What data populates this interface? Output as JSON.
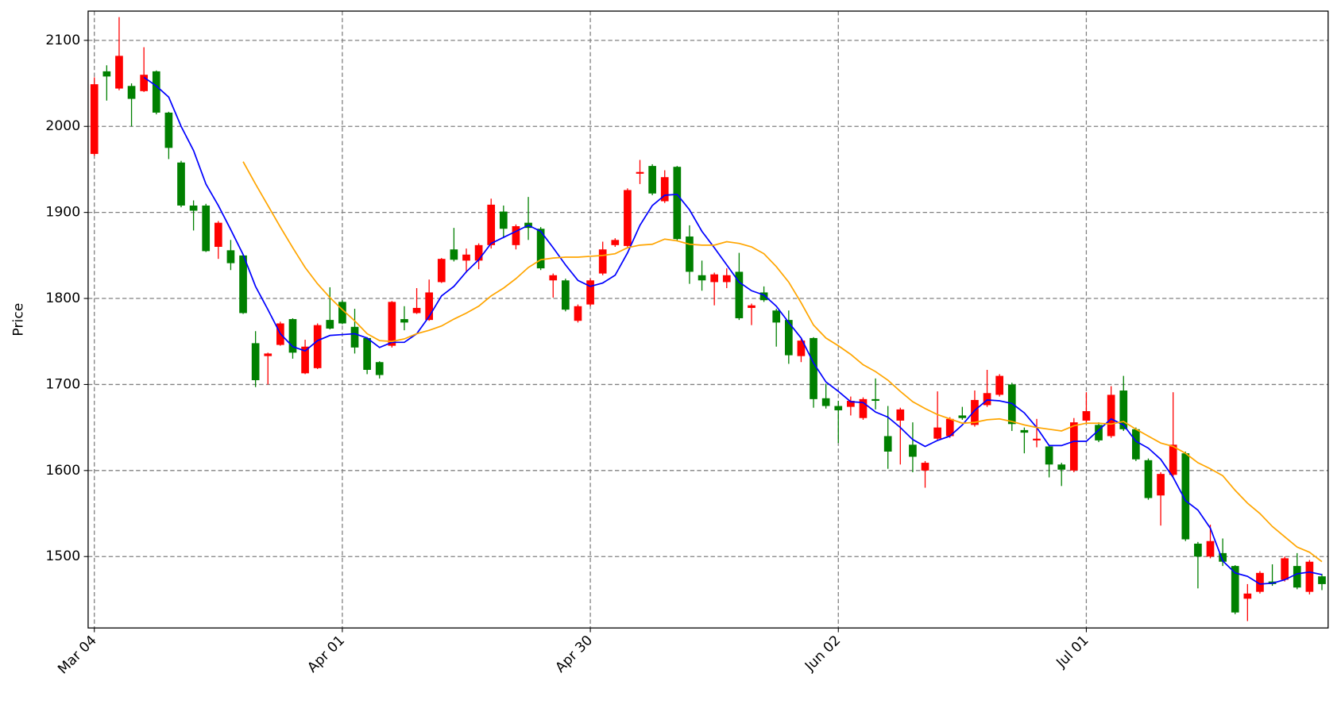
{
  "chart_data": {
    "type": "candlestick",
    "y_label": "Price",
    "categories": [
      "Mar 04",
      null,
      null,
      null,
      null,
      null,
      null,
      null,
      null,
      null,
      null,
      null,
      null,
      null,
      null,
      null,
      null,
      null,
      null,
      null,
      "Apr 01",
      null,
      null,
      null,
      null,
      null,
      null,
      null,
      null,
      null,
      null,
      null,
      null,
      null,
      null,
      null,
      null,
      null,
      null,
      null,
      "Apr 30",
      null,
      null,
      null,
      null,
      null,
      null,
      null,
      null,
      null,
      null,
      null,
      null,
      null,
      null,
      null,
      null,
      null,
      null,
      null,
      "Jun 02",
      null,
      null,
      null,
      null,
      null,
      null,
      null,
      null,
      null,
      null,
      null,
      null,
      null,
      null,
      null,
      null,
      null,
      null,
      null,
      "Jul 01",
      null,
      null,
      null,
      null,
      null,
      null,
      null,
      null,
      null,
      null,
      null,
      null,
      null,
      null,
      null,
      null,
      null,
      null,
      null
    ],
    "open": [
      1968,
      2064,
      2044,
      2047,
      2041,
      2064,
      2016,
      1958,
      1908,
      1908,
      1860,
      1856,
      1850,
      1748,
      1733,
      1746,
      1776,
      1713,
      1719,
      1775,
      1796,
      1767,
      1754,
      1726,
      1745,
      1776,
      1783,
      1775,
      1819,
      1857,
      1844,
      1844,
      1862,
      1901,
      1862,
      1888,
      1881,
      1821,
      1821,
      1774,
      1793,
      1829,
      1862,
      1861,
      1945,
      1954,
      1913,
      1953,
      1872,
      1827,
      1819,
      1819,
      1831,
      1789,
      1807,
      1786,
      1775,
      1733,
      1754,
      1684,
      1675,
      1674,
      1661,
      1683,
      1640,
      1658,
      1630,
      1600,
      1637,
      1640,
      1664,
      1653,
      1676,
      1688,
      1700,
      1647,
      1635,
      1628,
      1607,
      1600,
      1658,
      1653,
      1640,
      1693,
      1648,
      1612,
      1571,
      1595,
      1620,
      1515,
      1500,
      1504,
      1489,
      1451,
      1459,
      1471,
      1473,
      1489,
      1459,
      1477
    ],
    "high": [
      2057,
      2071,
      2127,
      2050,
      2092,
      2065,
      2017,
      1960,
      1914,
      1910,
      1890,
      1868,
      1851,
      1762,
      1737,
      1773,
      1777,
      1752,
      1771,
      1813,
      1798,
      1788,
      1755,
      1727,
      1797,
      1791,
      1812,
      1822,
      1847,
      1882,
      1858,
      1864,
      1916,
      1908,
      1886,
      1918,
      1883,
      1829,
      1823,
      1793,
      1823,
      1866,
      1870,
      1928,
      1961,
      1956,
      1949,
      1954,
      1885,
      1844,
      1830,
      1835,
      1853,
      1794,
      1814,
      1788,
      1786,
      1753,
      1755,
      1701,
      1681,
      1686,
      1685,
      1707,
      1675,
      1673,
      1656,
      1611,
      1692,
      1662,
      1674,
      1693,
      1717,
      1712,
      1702,
      1650,
      1660,
      1630,
      1609,
      1661,
      1691,
      1656,
      1698,
      1710,
      1650,
      1614,
      1598,
      1691,
      1622,
      1517,
      1537,
      1521,
      1490,
      1468,
      1483,
      1491,
      1500,
      1504,
      1496,
      1480
    ],
    "low": [
      1966,
      2030,
      2042,
      2000,
      2040,
      2014,
      1962,
      1906,
      1879,
      1854,
      1846,
      1833,
      1782,
      1697,
      1700,
      1745,
      1730,
      1712,
      1718,
      1764,
      1770,
      1736,
      1712,
      1707,
      1743,
      1763,
      1782,
      1774,
      1818,
      1843,
      1830,
      1834,
      1858,
      1870,
      1857,
      1868,
      1833,
      1801,
      1785,
      1772,
      1791,
      1827,
      1860,
      1859,
      1933,
      1920,
      1911,
      1867,
      1817,
      1809,
      1792,
      1812,
      1775,
      1769,
      1796,
      1744,
      1724,
      1726,
      1673,
      1672,
      1632,
      1664,
      1659,
      1671,
      1602,
      1607,
      1598,
      1580,
      1635,
      1638,
      1659,
      1651,
      1674,
      1686,
      1646,
      1620,
      1627,
      1592,
      1582,
      1598,
      1656,
      1633,
      1638,
      1646,
      1611,
      1566,
      1536,
      1593,
      1518,
      1463,
      1498,
      1489,
      1433,
      1425,
      1457,
      1466,
      1471,
      1462,
      1456,
      1461
    ],
    "close": [
      2049,
      2058,
      2082,
      2032,
      2060,
      2016,
      1975,
      1908,
      1902,
      1855,
      1888,
      1841,
      1783,
      1705,
      1736,
      1771,
      1737,
      1744,
      1769,
      1765,
      1771,
      1743,
      1717,
      1711,
      1796,
      1772,
      1789,
      1807,
      1846,
      1845,
      1851,
      1862,
      1909,
      1881,
      1884,
      1882,
      1835,
      1827,
      1787,
      1791,
      1821,
      1857,
      1868,
      1926,
      1947,
      1922,
      1941,
      1869,
      1831,
      1821,
      1828,
      1827,
      1777,
      1792,
      1798,
      1772,
      1734,
      1751,
      1683,
      1675,
      1670,
      1681,
      1683,
      1681,
      1622,
      1671,
      1616,
      1609,
      1650,
      1660,
      1661,
      1682,
      1690,
      1710,
      1654,
      1644,
      1637,
      1607,
      1601,
      1656,
      1669,
      1635,
      1688,
      1648,
      1613,
      1568,
      1596,
      1630,
      1520,
      1500,
      1518,
      1494,
      1435,
      1457,
      1481,
      1468,
      1498,
      1464,
      1494,
      1468
    ],
    "up_color": "#ff0000",
    "down_color": "#008000",
    "moving_averages": [
      {
        "color": "#0000ff",
        "values": [
          null,
          null,
          null,
          null,
          2057,
          2047,
          2034,
          2000,
          1972,
          1933,
          1908,
          1880,
          1851,
          1814,
          1787,
          1759,
          1744,
          1739,
          1751,
          1757,
          1758,
          1759,
          1754,
          1743,
          1749,
          1749,
          1759,
          1779,
          1803,
          1814,
          1831,
          1845,
          1864,
          1871,
          1878,
          1885,
          1878,
          1859,
          1839,
          1821,
          1814,
          1818,
          1827,
          1853,
          1885,
          1908,
          1920,
          1921,
          1903,
          1878,
          1859,
          1839,
          1819,
          1809,
          1804,
          1791,
          1772,
          1754,
          1725,
          1703,
          1692,
          1680,
          1679,
          1668,
          1662,
          1650,
          1636,
          1628,
          1635,
          1640,
          1653,
          1670,
          1682,
          1681,
          1678,
          1667,
          1650,
          1629,
          1629,
          1634,
          1634,
          1647,
          1660,
          1653,
          1634,
          1626,
          1613,
          1592,
          1565,
          1554,
          1533,
          1495,
          1481,
          1477,
          1468,
          1469,
          1473,
          1480,
          1482,
          1479
        ]
      },
      {
        "color": "#ffa500",
        "values": [
          null,
          null,
          null,
          null,
          null,
          null,
          null,
          null,
          null,
          null,
          null,
          null,
          1959,
          1933,
          1908,
          1883,
          1859,
          1836,
          1817,
          1801,
          1787,
          1774,
          1759,
          1751,
          1750,
          1753,
          1759,
          1763,
          1768,
          1776,
          1783,
          1791,
          1803,
          1812,
          1823,
          1836,
          1845,
          1847,
          1848,
          1848,
          1849,
          1850,
          1852,
          1859,
          1862,
          1863,
          1869,
          1867,
          1863,
          1862,
          1862,
          1866,
          1864,
          1860,
          1852,
          1837,
          1819,
          1795,
          1769,
          1754,
          1745,
          1735,
          1723,
          1715,
          1705,
          1692,
          1680,
          1672,
          1665,
          1660,
          1655,
          1656,
          1659,
          1660,
          1657,
          1653,
          1650,
          1648,
          1646,
          1652,
          1655,
          1655,
          1654,
          1657,
          1648,
          1640,
          1632,
          1628,
          1620,
          1609,
          1602,
          1594,
          1577,
          1562,
          1550,
          1535,
          1523,
          1511,
          1505,
          1494
        ]
      }
    ],
    "ylim": [
      1417,
      2134
    ],
    "yticks": [
      1500,
      1600,
      1700,
      1800,
      1900,
      2000,
      2100
    ],
    "grid": true
  }
}
